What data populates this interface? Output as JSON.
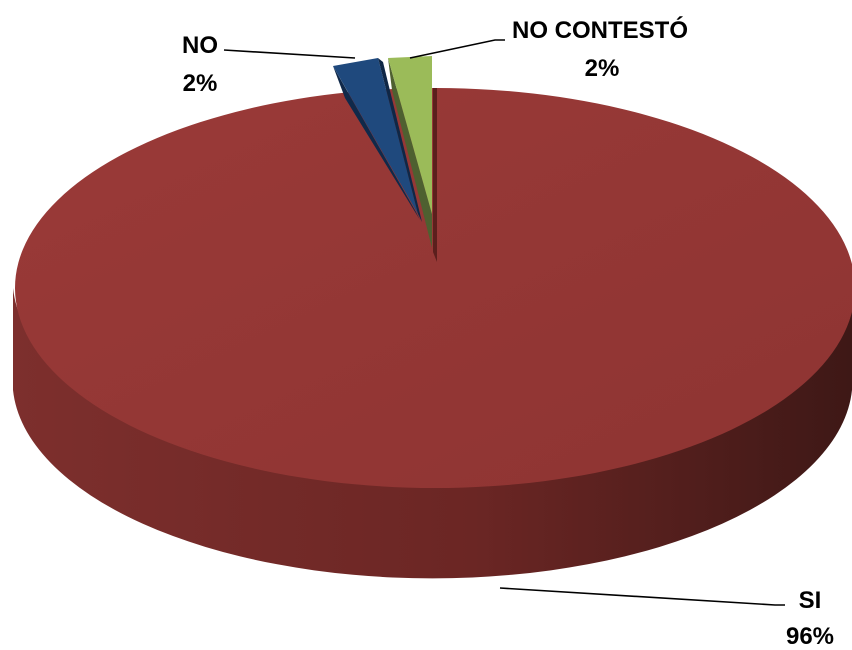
{
  "chart_data": {
    "type": "pie",
    "title": "",
    "slices": [
      {
        "label": "SI",
        "percent_label": "96%",
        "value": 96,
        "color": "#953735"
      },
      {
        "label": "NO",
        "percent_label": "2%",
        "value": 2,
        "color": "#1F497D"
      },
      {
        "label": "NO CONTESTÓ",
        "percent_label": "2%",
        "value": 2,
        "color": "#9BBB59"
      }
    ],
    "legend": "none",
    "style": "3d-exploded"
  }
}
